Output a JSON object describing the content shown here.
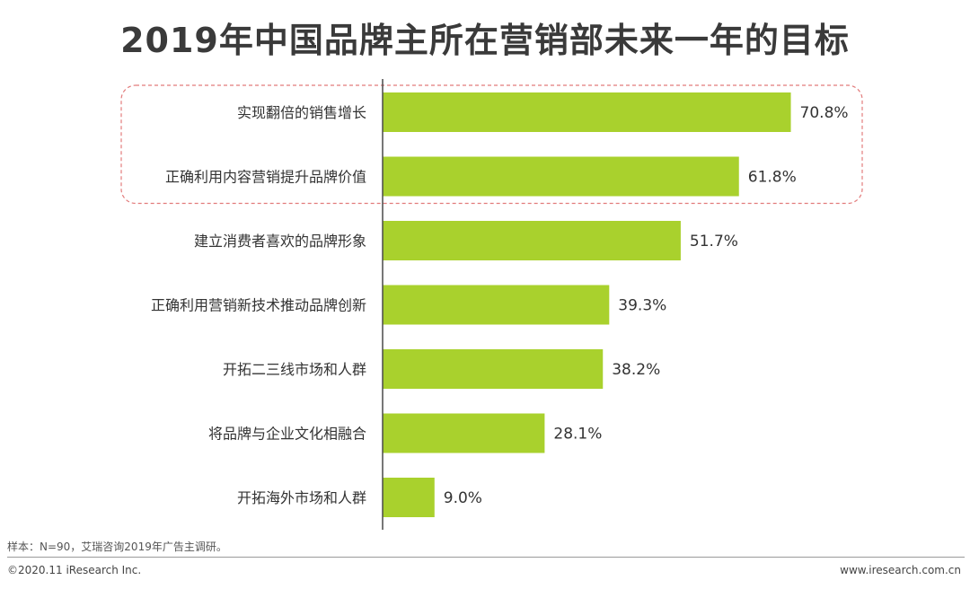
{
  "title": "2019年中国品牌主所在营销部未来一年的目标",
  "note": "样本：N=90，艾瑞咨询2019年广告主调研。",
  "copyright": "©2020.11 iResearch Inc.",
  "website": "www.iresearch.com.cn",
  "colors": {
    "bar": "#a9d12d",
    "highlight": "#e27b7b",
    "axis": "#4a4a4a"
  },
  "chart_data": {
    "type": "bar",
    "orientation": "horizontal",
    "categories": [
      "实现翻倍的销售增长",
      "正确利用内容营销提升品牌价值",
      "建立消费者喜欢的品牌形象",
      "正确利用营销新技术推动品牌创新",
      "开拓二三线市场和人群",
      "将品牌与企业文化相融合",
      "开拓海外市场和人群"
    ],
    "values": [
      70.8,
      61.8,
      51.7,
      39.3,
      38.2,
      28.1,
      9.0
    ],
    "value_labels": [
      "70.8%",
      "61.8%",
      "51.7%",
      "39.3%",
      "38.2%",
      "28.1%",
      "9.0%"
    ],
    "unit": "%",
    "highlighted_categories": [
      0,
      1
    ],
    "xlim": [
      0,
      100
    ],
    "grid": false,
    "legend": "none"
  }
}
